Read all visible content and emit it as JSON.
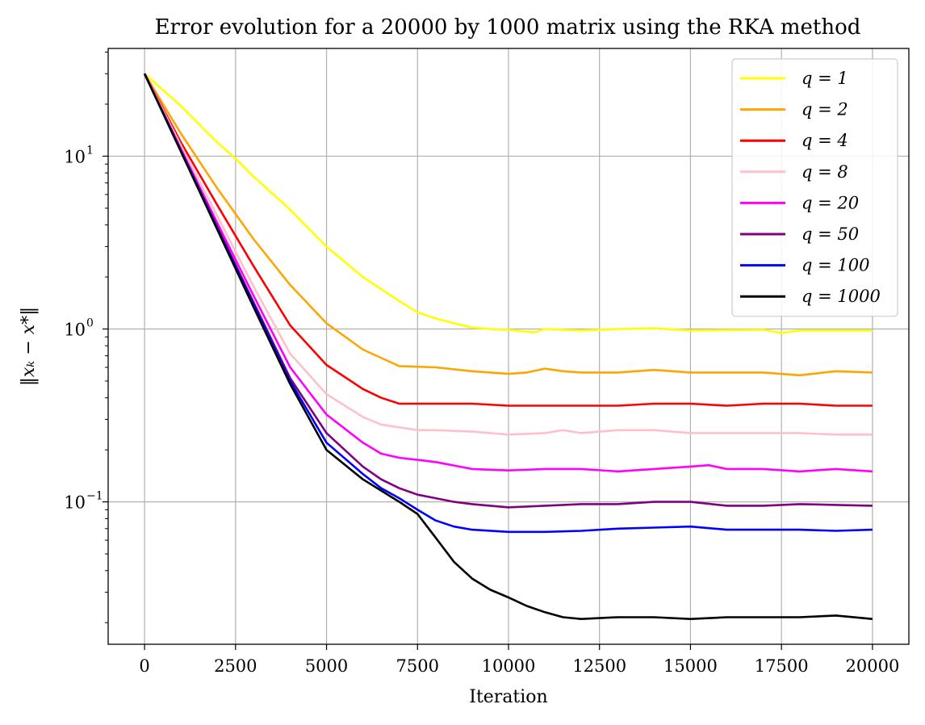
{
  "chart_data": {
    "type": "line",
    "title": "Error evolution for a 20000 by 1000 matrix using the RKA method",
    "xlabel": "Iteration",
    "ylabel": "‖xₖ − x*‖",
    "yscale": "log",
    "xlim": [
      -1000,
      21000
    ],
    "ylim": [
      0.015,
      42
    ],
    "grid": true,
    "legend_position": "top-right",
    "x_ticks": [
      0,
      2500,
      5000,
      7500,
      10000,
      12500,
      15000,
      17500,
      20000
    ],
    "x_tick_labels": [
      "0",
      "2500",
      "5000",
      "7500",
      "10000",
      "12500",
      "15000",
      "17500",
      "20000"
    ],
    "y_ticks": [
      10,
      1,
      0.1
    ],
    "y_tick_labels": [
      {
        "base": "10",
        "exp": "1"
      },
      {
        "base": "10",
        "exp": "0"
      },
      {
        "base": "10",
        "exp": "−1"
      }
    ],
    "series": [
      {
        "name": "q = 1",
        "color": "#ffff00",
        "x": [
          0,
          1000,
          2000,
          2500,
          3000,
          4000,
          5000,
          6000,
          7000,
          7500,
          8000,
          8500,
          9000,
          9500,
          10000,
          10700,
          11000,
          12000,
          13000,
          14000,
          15000,
          16000,
          17000,
          17500,
          18000,
          19000,
          20000
        ],
        "y": [
          30,
          19.5,
          12,
          9.7,
          7.6,
          4.9,
          3.0,
          2.0,
          1.45,
          1.25,
          1.15,
          1.08,
          1.02,
          1.0,
          0.99,
          0.955,
          1.0,
          0.98,
          1.0,
          1.01,
          0.98,
          0.985,
          0.99,
          0.95,
          0.98,
          0.98,
          0.98
        ]
      },
      {
        "name": "q = 2",
        "color": "#ffa500",
        "x": [
          0,
          1000,
          2000,
          3000,
          4000,
          5000,
          6000,
          7000,
          8000,
          9000,
          10000,
          10500,
          11000,
          11500,
          12000,
          13000,
          14000,
          15000,
          16000,
          17000,
          18000,
          19000,
          20000
        ],
        "y": [
          30,
          13.5,
          6.5,
          3.3,
          1.8,
          1.08,
          0.76,
          0.61,
          0.6,
          0.57,
          0.55,
          0.56,
          0.59,
          0.57,
          0.56,
          0.56,
          0.58,
          0.56,
          0.56,
          0.56,
          0.54,
          0.57,
          0.56
        ]
      },
      {
        "name": "q = 4",
        "color": "#ff0000",
        "x": [
          0,
          1000,
          2000,
          3000,
          4000,
          5000,
          6000,
          6500,
          7000,
          7500,
          8000,
          9000,
          10000,
          11000,
          12000,
          13000,
          14000,
          15000,
          16000,
          17000,
          18000,
          19000,
          20000
        ],
        "y": [
          30,
          12,
          5.2,
          2.3,
          1.05,
          0.62,
          0.45,
          0.4,
          0.37,
          0.37,
          0.37,
          0.37,
          0.36,
          0.36,
          0.36,
          0.36,
          0.37,
          0.37,
          0.36,
          0.37,
          0.37,
          0.36,
          0.36
        ]
      },
      {
        "name": "q = 8",
        "color": "#ffc0cb",
        "x": [
          0,
          1000,
          2000,
          3000,
          4000,
          5000,
          6000,
          6500,
          7000,
          7500,
          8000,
          9000,
          10000,
          11000,
          11500,
          12000,
          13000,
          14000,
          15000,
          16000,
          17000,
          18000,
          19000,
          20000
        ],
        "y": [
          30,
          11.5,
          4.5,
          1.75,
          0.72,
          0.42,
          0.31,
          0.28,
          0.27,
          0.26,
          0.26,
          0.255,
          0.245,
          0.25,
          0.26,
          0.25,
          0.26,
          0.26,
          0.25,
          0.25,
          0.25,
          0.25,
          0.245,
          0.245
        ]
      },
      {
        "name": "q = 20",
        "color": "#ff00ff",
        "x": [
          0,
          1000,
          2000,
          3000,
          4000,
          5000,
          6000,
          6500,
          7000,
          7500,
          8000,
          9000,
          10000,
          11000,
          12000,
          13000,
          14000,
          15000,
          15500,
          16000,
          17000,
          18000,
          19000,
          20000
        ],
        "y": [
          30,
          11,
          4.1,
          1.55,
          0.6,
          0.32,
          0.22,
          0.19,
          0.18,
          0.175,
          0.17,
          0.155,
          0.152,
          0.155,
          0.155,
          0.15,
          0.155,
          0.16,
          0.163,
          0.155,
          0.155,
          0.15,
          0.155,
          0.15
        ]
      },
      {
        "name": "q = 50",
        "color": "#800080",
        "x": [
          0,
          1000,
          2000,
          3000,
          4000,
          5000,
          6000,
          6500,
          7000,
          7500,
          8000,
          8500,
          9000,
          10000,
          11000,
          12000,
          13000,
          14000,
          15000,
          16000,
          17000,
          18000,
          19000,
          20000
        ],
        "y": [
          30,
          10.8,
          3.9,
          1.42,
          0.52,
          0.25,
          0.16,
          0.135,
          0.12,
          0.11,
          0.105,
          0.1,
          0.097,
          0.093,
          0.095,
          0.097,
          0.097,
          0.1,
          0.1,
          0.095,
          0.095,
          0.097,
          0.096,
          0.095
        ]
      },
      {
        "name": "q = 100",
        "color": "#0000ff",
        "x": [
          0,
          1000,
          2000,
          3000,
          4000,
          5000,
          6000,
          6500,
          7000,
          7500,
          8000,
          8500,
          9000,
          10000,
          11000,
          12000,
          13000,
          14000,
          15000,
          16000,
          17000,
          18000,
          19000,
          20000
        ],
        "y": [
          30,
          10.7,
          3.8,
          1.38,
          0.5,
          0.22,
          0.145,
          0.12,
          0.105,
          0.09,
          0.078,
          0.072,
          0.069,
          0.067,
          0.067,
          0.068,
          0.07,
          0.071,
          0.072,
          0.069,
          0.069,
          0.069,
          0.068,
          0.069
        ]
      },
      {
        "name": "q = 1000",
        "color": "#000000",
        "x": [
          0,
          1000,
          2000,
          3000,
          4000,
          5000,
          6000,
          7000,
          7500,
          8000,
          8500,
          9000,
          9500,
          10000,
          10500,
          11000,
          11500,
          12000,
          13000,
          14000,
          15000,
          16000,
          17000,
          18000,
          19000,
          20000
        ],
        "y": [
          30,
          10.6,
          3.75,
          1.33,
          0.48,
          0.2,
          0.135,
          0.1,
          0.085,
          0.062,
          0.045,
          0.036,
          0.031,
          0.028,
          0.025,
          0.023,
          0.0215,
          0.021,
          0.0215,
          0.0215,
          0.021,
          0.0215,
          0.0215,
          0.0215,
          0.022,
          0.021
        ]
      }
    ]
  }
}
